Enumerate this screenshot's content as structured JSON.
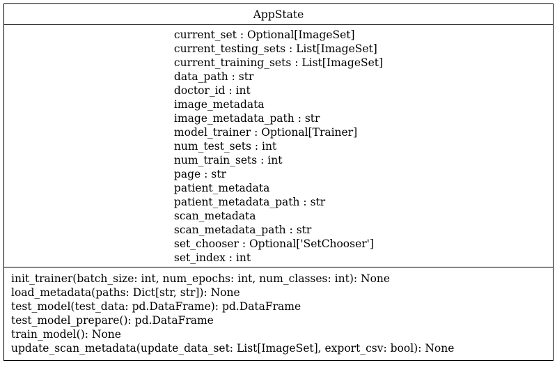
{
  "class": {
    "name": "AppState",
    "attributes": [
      "current_set : Optional[ImageSet]",
      "current_testing_sets : List[ImageSet]",
      "current_training_sets : List[ImageSet]",
      "data_path : str",
      "doctor_id : int",
      "image_metadata",
      "image_metadata_path : str",
      "model_trainer : Optional[Trainer]",
      "num_test_sets : int",
      "num_train_sets : int",
      "page : str",
      "patient_metadata",
      "patient_metadata_path : str",
      "scan_metadata",
      "scan_metadata_path : str",
      "set_chooser : Optional['SetChooser']",
      "set_index : int"
    ],
    "methods": [
      "init_trainer(batch_size: int, num_epochs: int, num_classes: int): None",
      "load_metadata(paths: Dict[str, str]): None",
      "test_model(test_data: pd.DataFrame): pd.DataFrame",
      "test_model_prepare(): pd.DataFrame",
      "train_model(): None",
      "update_scan_metadata(update_data_set: List[ImageSet], export_csv: bool): None"
    ]
  }
}
